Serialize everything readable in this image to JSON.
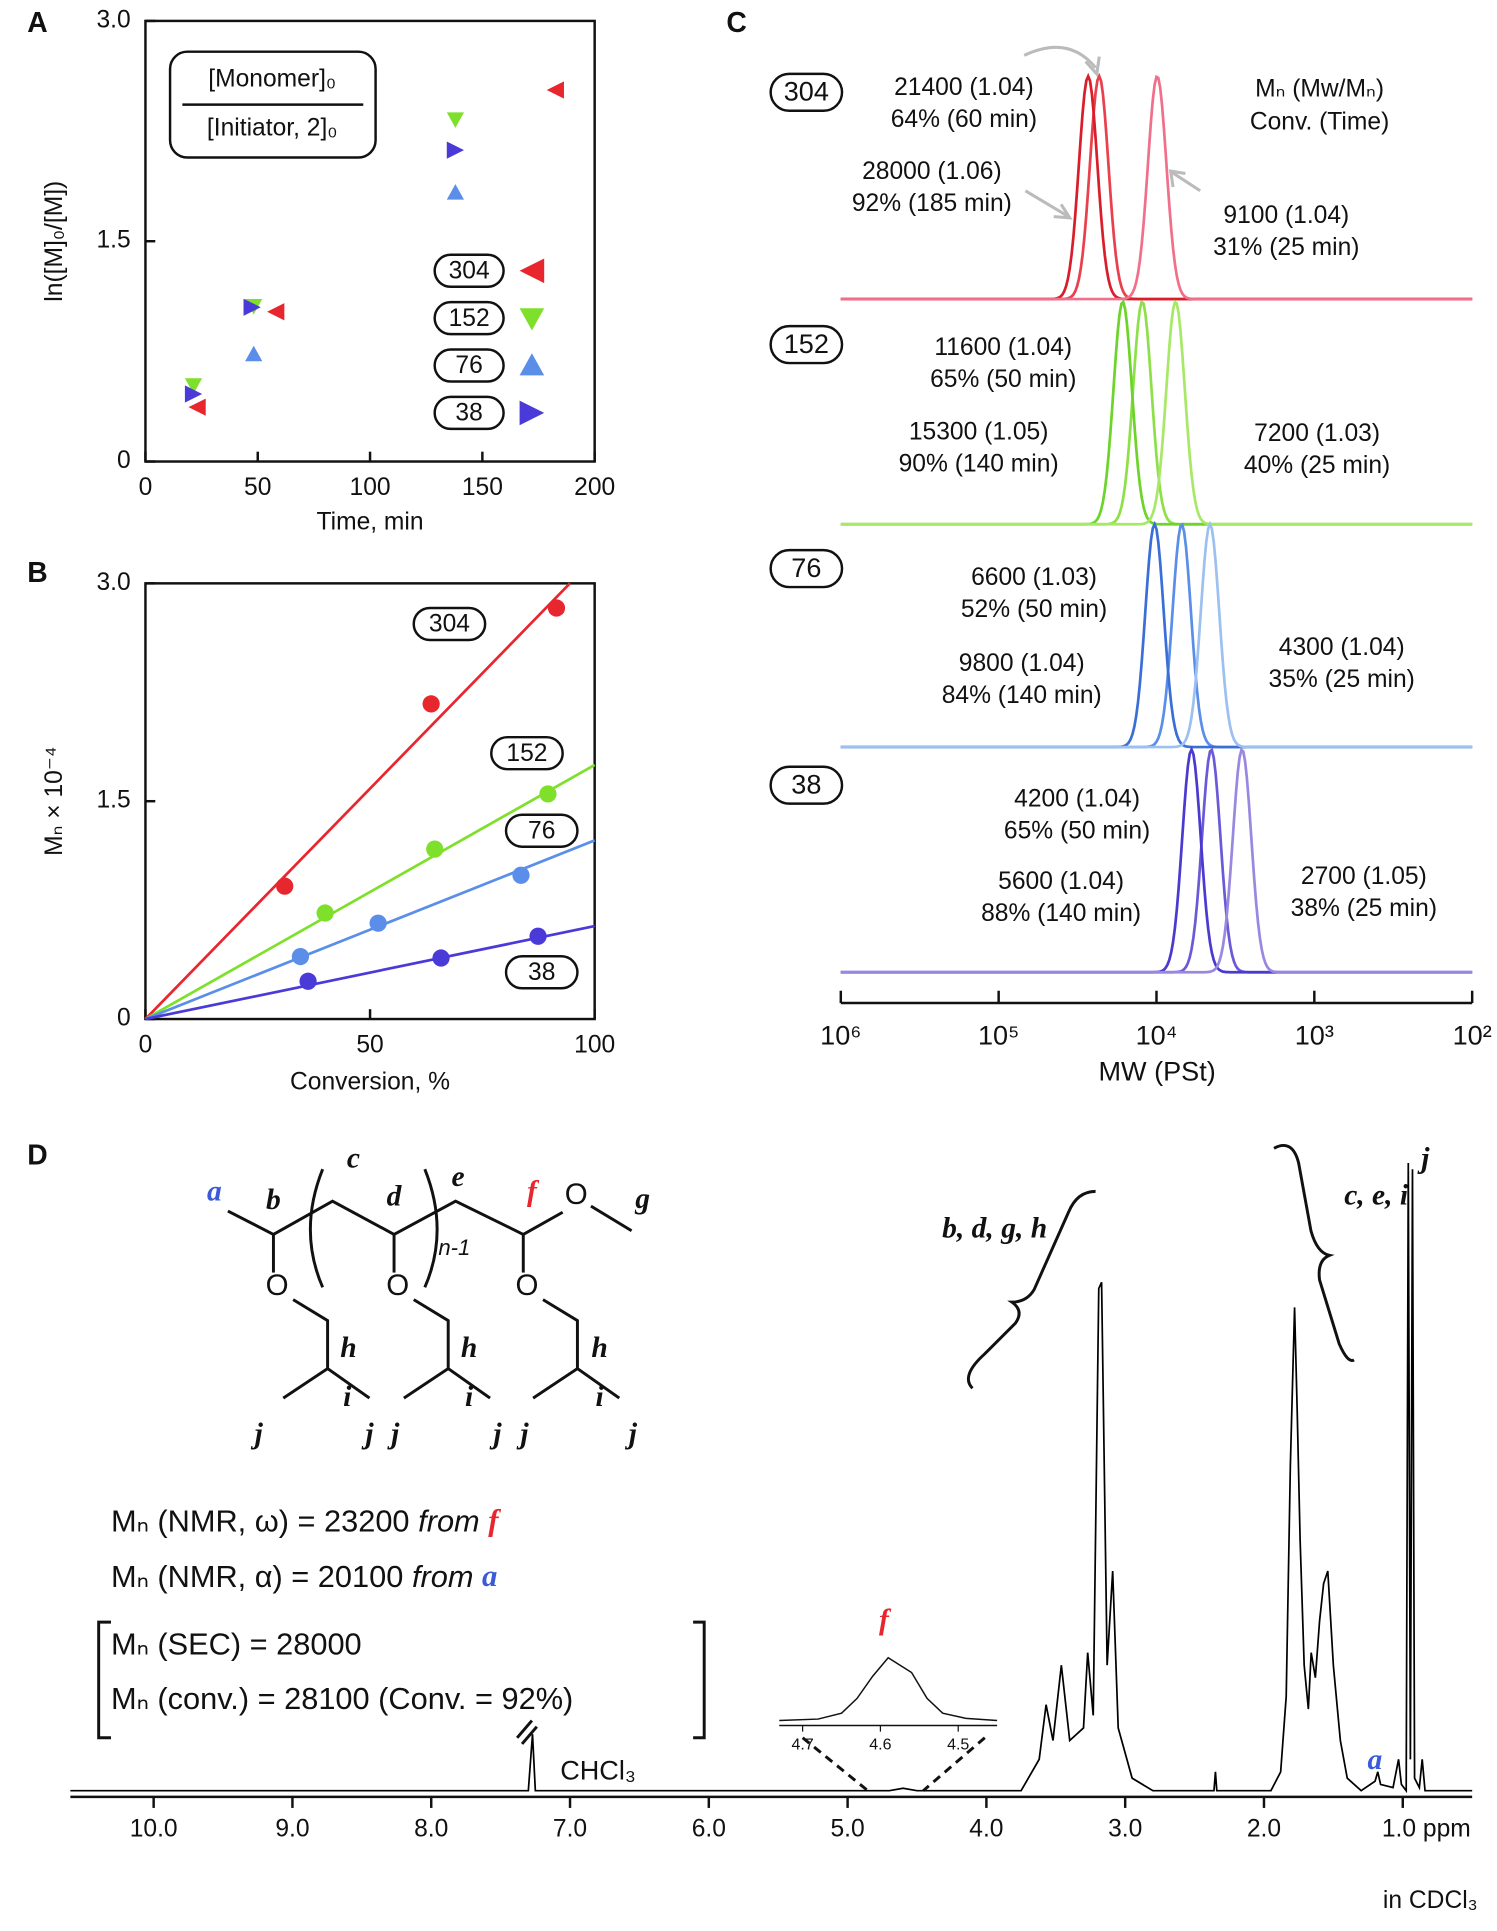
{
  "chart_data": [
    {
      "type": "scatter",
      "title": "A",
      "xlabel": "Time, min",
      "ylabel": "ln([M]₀/[M])",
      "xlim": [
        0,
        200
      ],
      "ylim": [
        0,
        3
      ],
      "xticks": [
        0,
        50,
        100,
        150,
        200
      ],
      "yticks": [
        0,
        1.5,
        {
          "value": 3,
          "label": "3.0"
        }
      ],
      "ratio_label": [
        "[Monomer]₀",
        "[Initiator, 2]₀"
      ],
      "series": [
        {
          "name": "304",
          "color": "#e8262e",
          "marker": "left",
          "x": [
            23,
            58,
            182.5
          ],
          "values": [
            0.37,
            1.02,
            2.53
          ]
        },
        {
          "name": "152",
          "color": "#7ee02a",
          "marker": "down",
          "x": [
            21.4,
            48.2,
            138
          ],
          "values": [
            0.52,
            1.06,
            2.33
          ]
        },
        {
          "name": "76",
          "color": "#5a8ee8",
          "marker": "up",
          "x": [
            48.2,
            138
          ],
          "values": [
            0.73,
            1.83
          ]
        },
        {
          "name": "38",
          "color": "#4a3ad8",
          "marker": "right",
          "x": [
            21.4,
            47.5,
            138
          ],
          "values": [
            0.46,
            1.05,
            2.12
          ]
        }
      ]
    },
    {
      "type": "scatter",
      "title": "B",
      "xlabel": "Conversion, %",
      "ylabel": "Mₙ × 10⁻⁴",
      "xlim": [
        0,
        100
      ],
      "ylim": [
        0,
        3
      ],
      "xticks": [
        0,
        50,
        100
      ],
      "yticks": [
        0,
        1.5,
        {
          "value": 3,
          "label": "3.0"
        }
      ],
      "series": [
        {
          "name": "304",
          "color": "#e8262e",
          "x": [
            31,
            63.6,
            91.5
          ],
          "values": [
            0.915,
            2.17,
            2.83
          ],
          "fit": {
            "x": [
              0,
              94.5
            ],
            "values": [
              0,
              3
            ]
          }
        },
        {
          "name": "152",
          "color": "#7ee02a",
          "x": [
            40,
            64.4,
            89.6
          ],
          "values": [
            0.73,
            1.17,
            1.55
          ],
          "fit": {
            "x": [
              0,
              100
            ],
            "values": [
              0,
              1.75
            ]
          }
        },
        {
          "name": "76",
          "color": "#5a8ee8",
          "x": [
            34.5,
            51.8,
            83.6
          ],
          "values": [
            0.43,
            0.66,
            0.99
          ],
          "fit": {
            "x": [
              0,
              100
            ],
            "values": [
              0,
              1.23
            ]
          }
        },
        {
          "name": "38",
          "color": "#4a3ad8",
          "x": [
            36.2,
            65.8,
            87.4
          ],
          "values": [
            0.26,
            0.42,
            0.57
          ],
          "fit": {
            "x": [
              0,
              100
            ],
            "values": [
              0,
              0.64
            ]
          }
        }
      ]
    },
    {
      "type": "sec",
      "title": "C",
      "xlabel": "MW (PSt)",
      "log_x": true,
      "xlim": [
        1000000,
        100
      ],
      "xticks": [
        {
          "value": 1000000,
          "label": "10⁶"
        },
        {
          "value": 100000,
          "label": "10⁵"
        },
        {
          "value": 10000,
          "label": "10⁴"
        },
        {
          "value": 1000,
          "label": "10³"
        },
        {
          "value": 100,
          "label": "10²"
        }
      ],
      "legend_title": [
        "Mₙ (Mw/Mₙ)",
        "Conv. (Time)"
      ],
      "groups": [
        {
          "name": "304",
          "traces": [
            {
              "peak": 23070,
              "color": "#e8404c",
              "mn_label": "21400 (1.04)",
              "conv_label": "64% (60 min)"
            },
            {
              "peak": 27100,
              "color": "#d81e2a",
              "mn_label": "28000 (1.06)",
              "conv_label": "92% (185 min)"
            },
            {
              "peak": 9900,
              "color": "#f0708c",
              "mn_label": "9100 (1.04)",
              "conv_label": "31% (25 min)"
            }
          ]
        },
        {
          "name": "152",
          "traces": [
            {
              "peak": 12300,
              "color": "#8ee04a",
              "mn_label": "11600 (1.04)",
              "conv_label": "65% (50 min)"
            },
            {
              "peak": 16370,
              "color": "#6cd42a",
              "mn_label": "15300 (1.05)",
              "conv_label": "90% (140 min)"
            },
            {
              "peak": 7570,
              "color": "#a8e868",
              "mn_label": "7200 (1.03)",
              "conv_label": "40% (25 min)"
            }
          ]
        },
        {
          "name": "76",
          "traces": [
            {
              "peak": 6920,
              "color": "#5a8ee8",
              "mn_label": "6600 (1.03)",
              "conv_label": "52% (50 min)"
            },
            {
              "peak": 10290,
              "color": "#3a6fd8",
              "mn_label": "9800 (1.04)",
              "conv_label": "84% (140 min)"
            },
            {
              "peak": 4580,
              "color": "#9cc0f0",
              "mn_label": "4300 (1.04)",
              "conv_label": "35% (25 min)"
            }
          ]
        },
        {
          "name": "38",
          "traces": [
            {
              "peak": 4500,
              "color": "#6a5ad8",
              "mn_label": "4200 (1.04)",
              "conv_label": "65% (50 min)"
            },
            {
              "peak": 6000,
              "color": "#4a3ad0",
              "mn_label": "5600 (1.04)",
              "conv_label": "88% (140 min)"
            },
            {
              "peak": 2870,
              "color": "#9a88e0",
              "mn_label": "2700 (1.05)",
              "conv_label": "38% (25 min)"
            }
          ]
        }
      ]
    },
    {
      "type": "spectrum",
      "title": "D",
      "xlim": [
        10.6,
        0.5
      ],
      "xticks": [
        {
          "value": 10,
          "label": "10.0"
        },
        {
          "value": 9,
          "label": "9.0"
        },
        {
          "value": 8,
          "label": "8.0"
        },
        {
          "value": 7,
          "label": "7.0"
        },
        {
          "value": 6,
          "label": "6.0"
        },
        {
          "value": 5,
          "label": "5.0"
        },
        {
          "value": 4,
          "label": "4.0"
        },
        {
          "value": 3,
          "label": "3.0"
        },
        {
          "value": 2,
          "label": "2.0"
        },
        {
          "value": 1,
          "label": "1.0 ppm"
        }
      ],
      "x_note": "in CDCl₃",
      "series": [
        {
          "color": "#000000",
          "x": [
            10.6,
            7.3,
            7.27,
            7.25,
            4.7,
            4.6,
            4.5,
            3.75,
            3.62,
            3.57,
            3.52,
            3.46,
            3.4,
            3.3,
            3.27,
            3.23,
            3.19,
            3.17,
            3.13,
            3.09,
            3.05,
            2.95,
            2.8,
            2.36,
            2.35,
            2.34,
            1.95,
            1.88,
            1.84,
            1.81,
            1.78,
            1.76,
            1.74,
            1.71,
            1.68,
            1.66,
            1.63,
            1.6,
            1.57,
            1.54,
            1.5,
            1.45,
            1.4,
            1.3,
            1.2,
            1.18,
            1.16,
            1.07,
            1.03,
            1.01,
            0.975,
            0.96,
            0.945,
            0.93,
            0.915,
            0.88,
            0.86,
            0.84,
            0.5
          ],
          "values": [
            0,
            0,
            9,
            0,
            0,
            0.4,
            0,
            0,
            5,
            13.7,
            8,
            20,
            8,
            10,
            22,
            12,
            80,
            81,
            20,
            35,
            10,
            2,
            0,
            0,
            3,
            0,
            0,
            3,
            15,
            52,
            77,
            60,
            40,
            20,
            13,
            22,
            18,
            27,
            33,
            35,
            20,
            8,
            2,
            0,
            1.5,
            3,
            1,
            0.5,
            5,
            1,
            0,
            100,
            5,
            99,
            2,
            0.5,
            5,
            0,
            0
          ]
        }
      ],
      "inset": {
        "xlim": [
          4.73,
          4.45
        ],
        "xticks": [
          4.7,
          4.6,
          4.5
        ],
        "label": "f",
        "x": [
          4.73,
          4.68,
          4.65,
          4.63,
          4.61,
          4.59,
          4.575,
          4.56,
          4.54,
          4.52,
          4.49,
          4.45
        ],
        "values": [
          0,
          2,
          10,
          30,
          60,
          85,
          75,
          65,
          30,
          10,
          3,
          0
        ]
      },
      "peak_labels": [
        "b, d, g, h",
        "c, e, i",
        "j",
        "a",
        "CHCl₃"
      ]
    }
  ],
  "structure_labels": [
    "a",
    "b",
    "c",
    "d",
    "e",
    "f",
    "g",
    "n-1",
    "h",
    "i",
    "j",
    "j",
    "h",
    "i",
    "j",
    "j",
    "h",
    "i",
    "j",
    "j",
    "O",
    "O",
    "O",
    "O"
  ],
  "mn_lines": [
    {
      "text": "Mₙ (NMR, ω) = 23200",
      "source": "from",
      "letter": "f",
      "color": "#e8262e"
    },
    {
      "text": "Mₙ (NMR, α) = 20100",
      "source": "from",
      "letter": "a",
      "color": "#3a5ad8"
    },
    {
      "text": "Mₙ (SEC) = 28000"
    },
    {
      "text": "Mₙ (conv.) = 28100 (Conv. = 92%)"
    }
  ]
}
